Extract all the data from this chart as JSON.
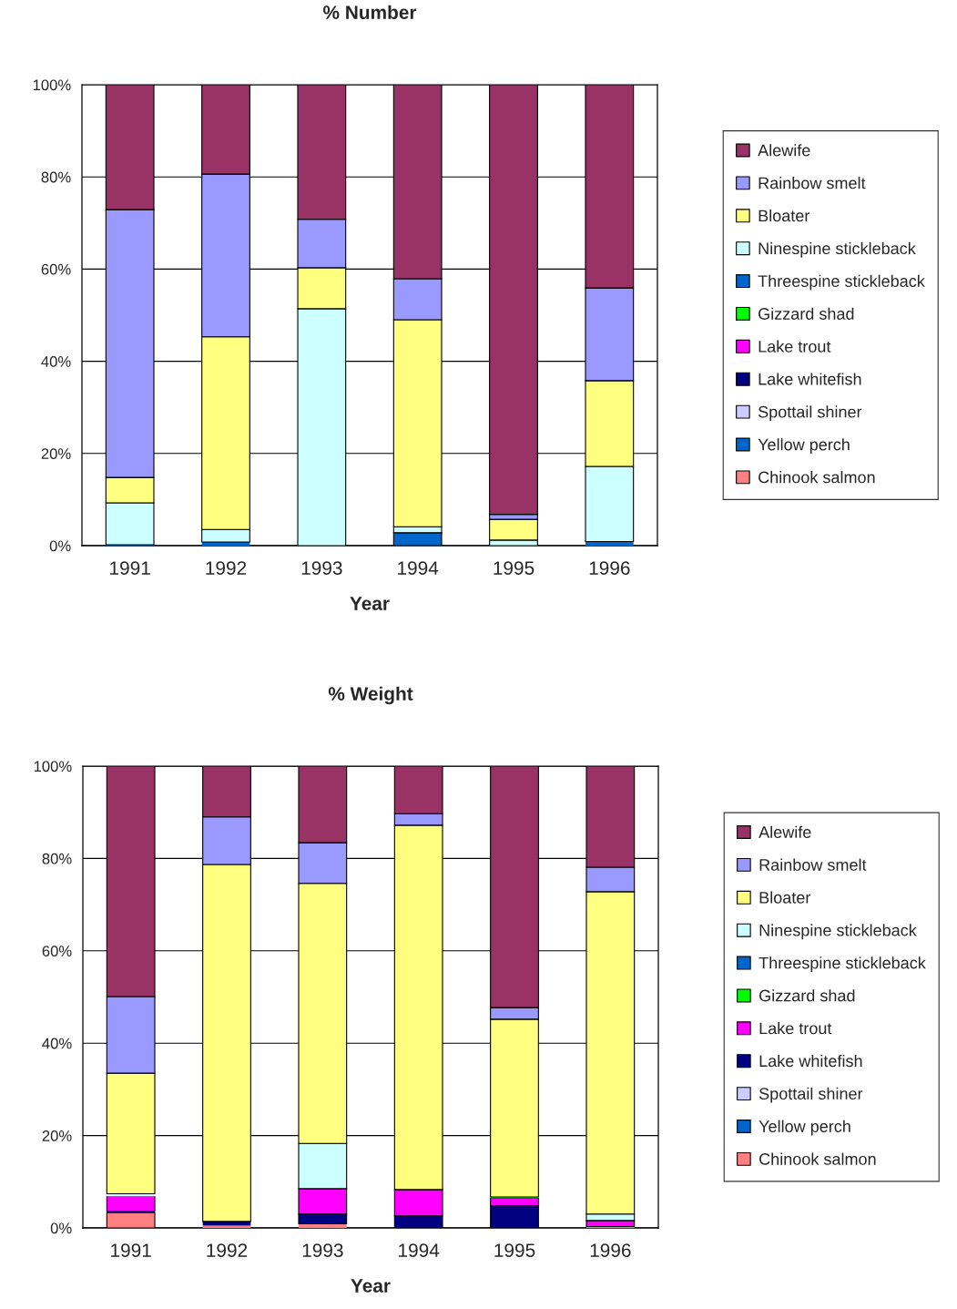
{
  "chart_data": [
    {
      "type": "bar",
      "title": "% Number",
      "xlabel": "Year",
      "categories": [
        "1991",
        "1992",
        "1993",
        "1994",
        "1995",
        "1996"
      ],
      "stacked": true,
      "legend": "right",
      "grid": "y",
      "ylim": [
        0,
        100
      ],
      "yticks": [
        {
          "value": 0,
          "label": "0%"
        },
        {
          "value": 20,
          "label": "20%"
        },
        {
          "value": 40,
          "label": "40%"
        },
        {
          "value": 60,
          "label": "60%"
        },
        {
          "value": 80,
          "label": "80%"
        },
        {
          "value": 100,
          "label": "100%"
        }
      ],
      "series": [
        {
          "name": "Chinook salmon",
          "color": "#ff8080",
          "values": [
            0,
            0,
            0,
            0,
            0,
            0
          ]
        },
        {
          "name": "Yellow perch",
          "color": "#0066cc",
          "values": [
            0,
            0,
            0,
            0,
            0,
            0
          ]
        },
        {
          "name": "Spottail shiner",
          "color": "#ccccff",
          "values": [
            0,
            0,
            0,
            0,
            0,
            0
          ]
        },
        {
          "name": "Lake whitefish",
          "color": "#000080",
          "values": [
            0,
            0,
            0,
            0,
            0,
            0
          ]
        },
        {
          "name": "Lake trout",
          "color": "#ff00ff",
          "values": [
            0,
            0,
            0,
            0,
            0,
            0
          ]
        },
        {
          "name": "Gizzard shad",
          "color": "#00ff00",
          "values": [
            0,
            0,
            0,
            0,
            0,
            0
          ]
        },
        {
          "name": "Threespine stickleback",
          "color": "#0066cc",
          "values": [
            0.2,
            0.8,
            0,
            2.8,
            0,
            0.9
          ]
        },
        {
          "name": "Ninespine stickleback",
          "color": "#ccffff",
          "values": [
            9.1,
            2.7,
            51.4,
            1.3,
            1.2,
            16.3
          ]
        },
        {
          "name": "Bloater",
          "color": "#ffff80",
          "values": [
            5.5,
            41.8,
            8.9,
            44.9,
            4.5,
            18.6
          ]
        },
        {
          "name": "Rainbow smelt",
          "color": "#9999ff",
          "values": [
            58.1,
            35.3,
            10.5,
            8.9,
            1.1,
            20.1
          ]
        },
        {
          "name": "Alewife",
          "color": "#993366",
          "values": [
            27.1,
            19.4,
            29.2,
            42.1,
            93.2,
            44.1
          ]
        }
      ]
    },
    {
      "type": "bar",
      "title": "% Weight",
      "xlabel": "Year",
      "categories": [
        "1991",
        "1992",
        "1993",
        "1994",
        "1995",
        "1996"
      ],
      "stacked": true,
      "legend": "right",
      "grid": "y",
      "ylim": [
        0,
        100
      ],
      "yticks": [
        {
          "value": 0,
          "label": "0%"
        },
        {
          "value": 20,
          "label": "20%"
        },
        {
          "value": 40,
          "label": "40%"
        },
        {
          "value": 60,
          "label": "60%"
        },
        {
          "value": 80,
          "label": "80%"
        },
        {
          "value": 100,
          "label": "100%"
        }
      ],
      "series": [
        {
          "name": "Chinook salmon",
          "color": "#ff8080",
          "values": [
            3.3,
            0.5,
            0.9,
            null,
            null,
            0.3
          ]
        },
        {
          "name": "Yellow perch",
          "color": "#0066cc",
          "values": [
            0,
            0,
            0,
            0,
            0,
            0
          ]
        },
        {
          "name": "Spottail shiner",
          "color": "#ccccff",
          "values": [
            0,
            0,
            0,
            0,
            0,
            0
          ]
        },
        {
          "name": "Lake whitefish",
          "color": "#000080",
          "values": [
            0.3,
            0.9,
            2.1,
            2.6,
            4.8,
            0
          ]
        },
        {
          "name": "Lake trout",
          "color": "#ff00ff",
          "values": [
            3.2,
            0,
            5.5,
            5.7,
            1.6,
            1.3
          ]
        },
        {
          "name": "Gizzard shad",
          "color": "#00ff00",
          "values": [
            0,
            0,
            0,
            0,
            0.3,
            0
          ]
        },
        {
          "name": "Threespine stickleback",
          "color": "#0066cc",
          "values": [
            0,
            0,
            0,
            0,
            0,
            0
          ]
        },
        {
          "name": "Ninespine stickleback",
          "color": "#ccffff",
          "values": [
            0.6,
            0,
            9.8,
            0,
            0,
            1.4
          ]
        },
        {
          "name": "Bloater",
          "color": "#ffff80",
          "values": [
            26.1,
            77.3,
            56.3,
            78.9,
            38.5,
            69.8
          ]
        },
        {
          "name": "Rainbow smelt",
          "color": "#9999ff",
          "values": [
            16.6,
            10.3,
            8.8,
            2.5,
            2.5,
            5.3
          ]
        },
        {
          "name": "Alewife",
          "color": "#993366",
          "values": [
            49.9,
            11.0,
            16.6,
            10.3,
            52.3,
            21.9
          ]
        }
      ]
    }
  ]
}
